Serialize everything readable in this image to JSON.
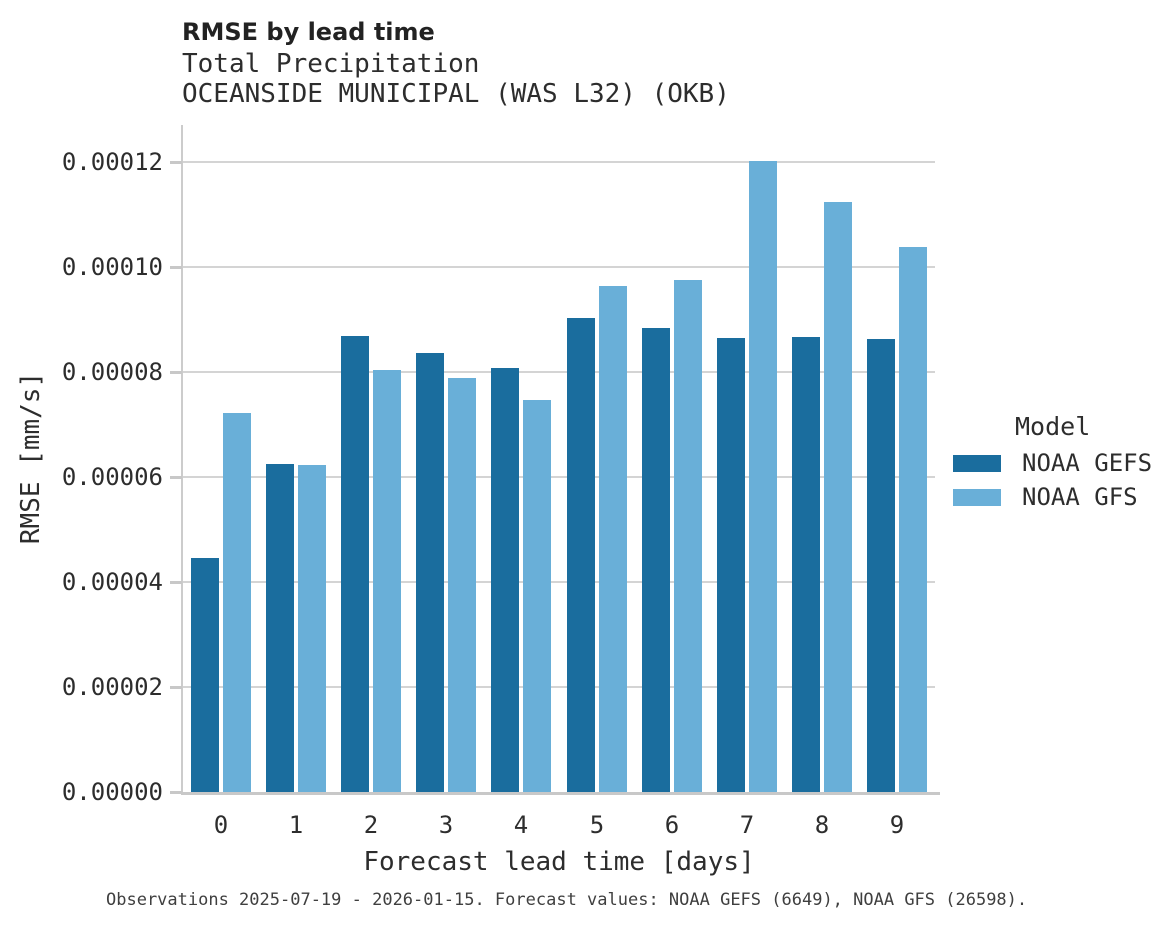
{
  "header": {
    "title": "RMSE by lead time",
    "subtitle": "Total Precipitation",
    "station": "OCEANSIDE MUNICIPAL (WAS L32) (OKB)"
  },
  "chart_data": {
    "type": "bar",
    "title": "RMSE by lead time",
    "subtitle": "Total Precipitation",
    "station": "OCEANSIDE MUNICIPAL (WAS L32) (OKB)",
    "xlabel": "Forecast lead time [days]",
    "ylabel": "RMSE [mm/s]",
    "categories": [
      "0",
      "1",
      "2",
      "3",
      "4",
      "5",
      "6",
      "7",
      "8",
      "9"
    ],
    "series": [
      {
        "name": "NOAA GEFS",
        "color": "#1a6d9e",
        "values": [
          4.45e-05,
          6.24e-05,
          8.68e-05,
          8.35e-05,
          8.07e-05,
          9.02e-05,
          8.84e-05,
          8.64e-05,
          8.66e-05,
          8.62e-05
        ]
      },
      {
        "name": "NOAA GFS",
        "color": "#69afd8",
        "values": [
          7.21e-05,
          6.22e-05,
          8.03e-05,
          7.89e-05,
          7.46e-05,
          9.64e-05,
          9.75e-05,
          0.0001201,
          0.0001123,
          0.0001038
        ]
      }
    ],
    "ylim": [
      0,
      0.000127
    ],
    "yticks": [
      0,
      2e-05,
      4e-05,
      6e-05,
      8e-05,
      0.0001,
      0.00012
    ],
    "ytick_labels": [
      "0.00000",
      "0.00002",
      "0.00004",
      "0.00006",
      "0.00008",
      "0.00010",
      "0.00012"
    ],
    "grid": "horizontal",
    "legend_title": "Model",
    "legend_position": "right"
  },
  "legend": {
    "title": "Model",
    "items": [
      {
        "label": "NOAA GEFS",
        "color": "#1a6d9e"
      },
      {
        "label": "NOAA GFS",
        "color": "#69afd8"
      }
    ]
  },
  "caption": "Observations 2025-07-19 - 2026-01-15. Forecast values: NOAA GEFS (6649), NOAA GFS (26598)."
}
